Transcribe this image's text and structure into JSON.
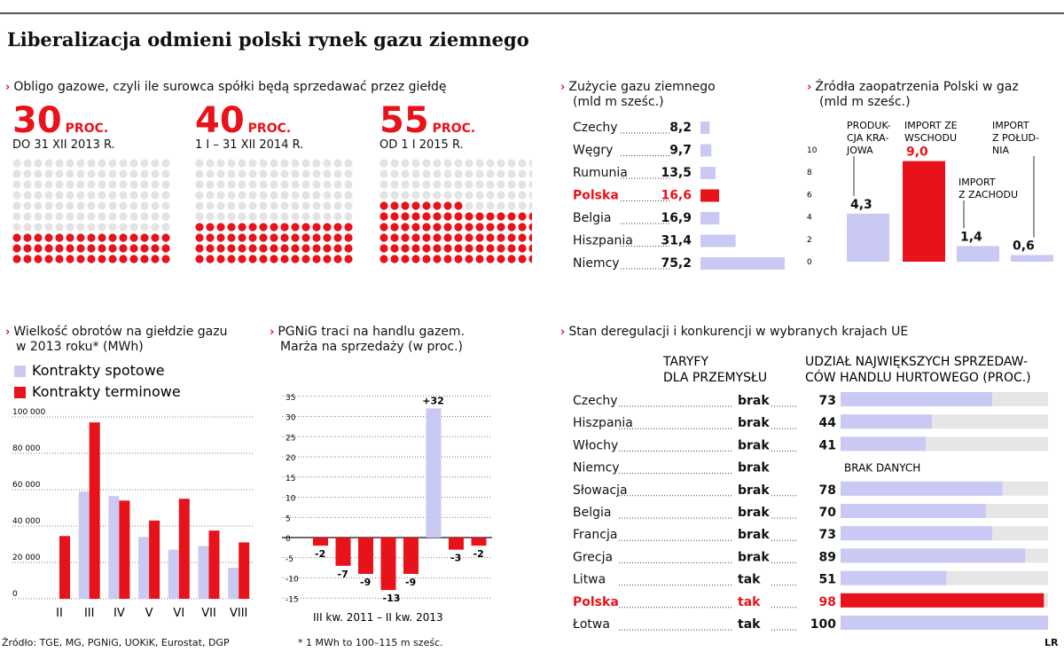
{
  "title": "Liberalizacja odmieni polski rynek gazu ziemnego",
  "colors": {
    "red": "#e8121a",
    "lilac": "#c9c9f4",
    "grey_dot": "#e3e3e3",
    "track": "#e6e6e6"
  },
  "obligo": {
    "title": "Obligo gazowe, czyli ile surowca spółki będą sprzedawać przez giełdę",
    "unit": "PROC.",
    "items": [
      {
        "value": "30",
        "period": "DO 31 XII 2013 R.",
        "percent": 30
      },
      {
        "value": "40",
        "period": "1 I – 31 XII 2014 R.",
        "percent": 40
      },
      {
        "value": "55",
        "period": "OD 1 I 2015 R.",
        "percent": 55
      }
    ]
  },
  "chart_data": [
    {
      "id": "consumption",
      "type": "bar",
      "title": "Zużycie gazu ziemnego",
      "subtitle": "(mld m sześc.)",
      "categories": [
        "Czechy",
        "Węgry",
        "Rumunia",
        "Polska",
        "Belgia",
        "Hiszpania",
        "Niemcy"
      ],
      "value_labels": [
        "8,2",
        "9,7",
        "13,5",
        "16,6",
        "16,9",
        "31,4",
        "75,2"
      ],
      "values": [
        8.2,
        9.7,
        13.5,
        16.6,
        16.9,
        31.4,
        75.2
      ],
      "highlight": "Polska"
    },
    {
      "id": "sources",
      "type": "bar",
      "title": "Źródła zaopatrzenia Polski w gaz",
      "subtitle": "(mld m sześc.)",
      "categories": [
        "PRODUK-CJA KRA-JOWA",
        "IMPORT ZE WSCHODU",
        "IMPORT Z ZACHODU",
        "IMPORT Z POŁUD-NIA"
      ],
      "category_lines": [
        [
          "PRODUK-",
          "CJA KRA-",
          "JOWA"
        ],
        [
          "IMPORT ZE",
          "WSCHODU"
        ],
        [
          "IMPORT",
          "Z ZACHODU"
        ],
        [
          "IMPORT",
          "Z POŁUD-",
          "NIA"
        ]
      ],
      "value_labels": [
        "4,3",
        "9,0",
        "1,4",
        "0,6"
      ],
      "values": [
        4.3,
        9.0,
        1.4,
        0.6
      ],
      "yticks": [
        "0",
        "2",
        "4",
        "6",
        "8",
        "10"
      ],
      "ylim": [
        0,
        10
      ],
      "highlight": "IMPORT ZE WSCHODU"
    },
    {
      "id": "turnover",
      "type": "bar",
      "title": "Wielkość obrotów na giełdzie gazu w 2013 roku* (MWh)",
      "title_lines": [
        "Wielkość obrotów na giełdzie gazu",
        "w 2013 roku* (MWh)"
      ],
      "legend": [
        "Kontrakty spotowe",
        "Kontrakty terminowe"
      ],
      "categories": [
        "II",
        "III",
        "IV",
        "V",
        "VI",
        "VII",
        "VIII"
      ],
      "series": [
        {
          "name": "Kontrakty spotowe",
          "values": [
            0,
            59000,
            56500,
            34000,
            27000,
            29000,
            17000
          ]
        },
        {
          "name": "Kontrakty terminowe",
          "values": [
            34500,
            97000,
            54000,
            43000,
            55000,
            37500,
            31000
          ]
        }
      ],
      "yticks": [
        "0",
        "20 000",
        "40 000",
        "60 000",
        "80 000",
        "100 000"
      ],
      "ylim": [
        0,
        100000
      ],
      "footnote": "* 1 MWh to 100–115 m sześc."
    },
    {
      "id": "margin",
      "type": "bar",
      "title": "PGNiG traci na handlu gazem. Marża na sprzedaży (w proc.)",
      "title_lines": [
        "PGNiG traci na handlu gazem.",
        "Marża na sprzedaży (w proc.)"
      ],
      "value_labels": [
        "-2",
        "-7",
        "-9",
        "-13",
        "-9",
        "+32",
        "-3",
        "-2"
      ],
      "values": [
        -2,
        -7,
        -9,
        -13,
        -9,
        32,
        -3,
        -2
      ],
      "yticks": [
        "-15",
        "-10",
        "-5",
        "0",
        "5",
        "10",
        "15",
        "20",
        "25",
        "30",
        "35"
      ],
      "ylim": [
        -15,
        35
      ],
      "xlabel": "III kw. 2011 – II kw. 2013"
    },
    {
      "id": "deregulation",
      "type": "table",
      "title": "Stan deregulacji i konkurencji w wybranych krajach UE",
      "col1_lines": [
        "TARYFY",
        "DLA PRZEMYSŁU"
      ],
      "col2_lines": [
        "UDZIAŁ NAJWIĘKSZYCH SPRZEDAW-",
        "CÓW HANDLU HURTOWEGO (PROC.)"
      ],
      "rows": [
        {
          "country": "Czechy",
          "tariff": "brak",
          "label": "73",
          "value": 73
        },
        {
          "country": "Hiszpania",
          "tariff": "brak",
          "label": "44",
          "value": 44
        },
        {
          "country": "Włochy",
          "tariff": "brak",
          "label": "41",
          "value": 41
        },
        {
          "country": "Niemcy",
          "tariff": "brak",
          "label": "BRAK DANYCH",
          "value": null
        },
        {
          "country": "Słowacja",
          "tariff": "brak",
          "label": "78",
          "value": 78
        },
        {
          "country": "Belgia",
          "tariff": "brak",
          "label": "70",
          "value": 70
        },
        {
          "country": "Francja",
          "tariff": "brak",
          "label": "73",
          "value": 73
        },
        {
          "country": "Grecja",
          "tariff": "brak",
          "label": "89",
          "value": 89
        },
        {
          "country": "Litwa",
          "tariff": "tak",
          "label": "51",
          "value": 51
        },
        {
          "country": "Polska",
          "tariff": "tak",
          "label": "98",
          "value": 98
        },
        {
          "country": "Łotwa",
          "tariff": "tak",
          "label": "100",
          "value": 100
        }
      ],
      "highlight": "Polska"
    }
  ],
  "footer": {
    "source": "Źródło: TGE, MG, PGNiG, UOKiK, Eurostat, DGP",
    "credit": "LR"
  }
}
